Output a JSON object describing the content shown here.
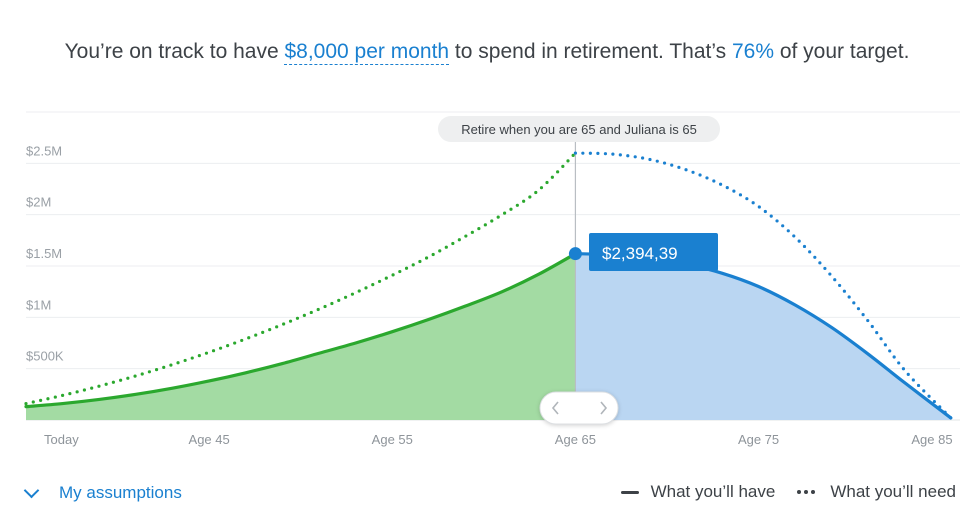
{
  "headline": {
    "prefix": "You’re on track to have ",
    "amount": "$8,000 per month",
    "middle": " to spend in retirement. That’s ",
    "percent": "76%",
    "suffix": " of your target."
  },
  "retire_marker": {
    "label": "Retire when you are 65 and Juliana is 65",
    "age": 65
  },
  "hover_value": "$2,394,39",
  "footer": {
    "assumptions_label": "My assumptions"
  },
  "legend": {
    "have_label": "What you’ll have",
    "need_label": "What you’ll need"
  },
  "colors": {
    "green_line": "#2ba82e",
    "green_fill": "#a3dba3",
    "blue_line": "#1a80d0",
    "blue_fill": "#bad6f2",
    "accent": "#1a80d0"
  },
  "icons": {
    "assumptions_toggle": "chevron-down-icon",
    "scroll_left": "chevron-left-icon",
    "scroll_right": "chevron-right-icon"
  },
  "chart_data": {
    "type": "area",
    "x_ticks": [
      {
        "age": 35,
        "label": "Today"
      },
      {
        "age": 45,
        "label": "Age 45"
      },
      {
        "age": 55,
        "label": "Age 55"
      },
      {
        "age": 65,
        "label": "Age 65"
      },
      {
        "age": 75,
        "label": "Age 75"
      },
      {
        "age": 85,
        "label": "Age 85"
      }
    ],
    "y_ticks": [
      {
        "value": 500000,
        "label": "$500K"
      },
      {
        "value": 1000000,
        "label": "$1M"
      },
      {
        "value": 1500000,
        "label": "$1.5M"
      },
      {
        "value": 2000000,
        "label": "$2M"
      },
      {
        "value": 2500000,
        "label": "$2.5M"
      }
    ],
    "xlim": [
      35,
      86
    ],
    "ylim": [
      0,
      3000000
    ],
    "grid": true,
    "series": [
      {
        "name": "What you’ll have",
        "style": "solid",
        "x": [
          35,
          37,
          39,
          41,
          43,
          45,
          47,
          49,
          51,
          53,
          55,
          57,
          59,
          61,
          63,
          65,
          67,
          69,
          71,
          73,
          75,
          77,
          79,
          81,
          83,
          85.5
        ],
        "y": [
          130000,
          160000,
          200000,
          250000,
          310000,
          380000,
          460000,
          550000,
          650000,
          750000,
          860000,
          980000,
          1110000,
          1250000,
          1420000,
          1620000,
          1610000,
          1580000,
          1520000,
          1430000,
          1300000,
          1120000,
          900000,
          640000,
          360000,
          20000
        ]
      },
      {
        "name": "What you’ll need",
        "style": "dotted",
        "x": [
          35,
          37,
          39,
          41,
          43,
          45,
          47,
          49,
          51,
          53,
          55,
          57,
          59,
          61,
          63,
          65,
          67,
          69,
          71,
          73,
          75,
          77,
          79,
          81,
          83,
          85.5
        ],
        "y": [
          160000,
          240000,
          330000,
          430000,
          540000,
          660000,
          790000,
          930000,
          1080000,
          1240000,
          1410000,
          1590000,
          1790000,
          2000000,
          2240000,
          2600000,
          2590000,
          2540000,
          2440000,
          2290000,
          2080000,
          1780000,
          1400000,
          960000,
          480000,
          20000
        ]
      }
    ]
  }
}
